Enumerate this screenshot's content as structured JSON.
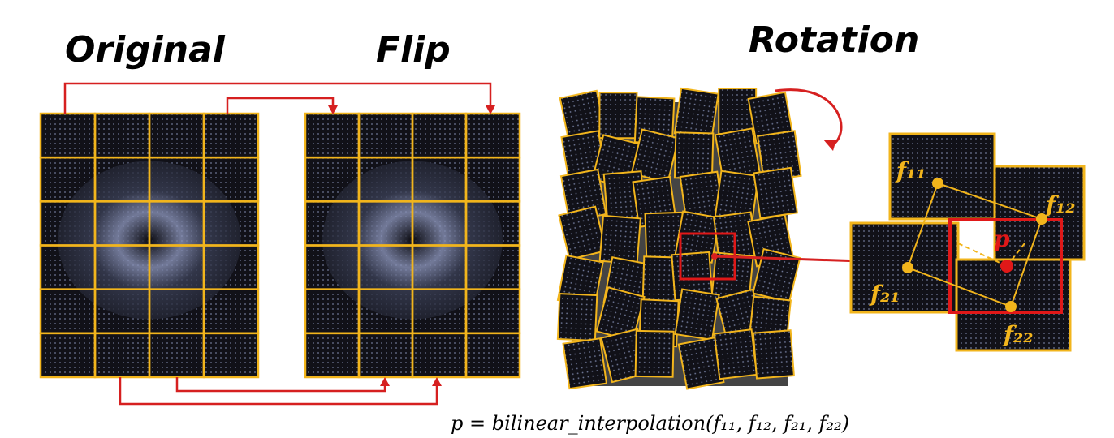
{
  "titles": {
    "original": "Original",
    "flip": "Flip",
    "rotation": "Rotation"
  },
  "zoom_labels": {
    "f11": "f₁₁",
    "f12": "f₁₂",
    "f21": "f₂₁",
    "f22": "f₂₂",
    "p": "p"
  },
  "formula": "p = bilinear_interpolation(f₁₁, f₁₂, f₂₁, f₂₂)"
}
